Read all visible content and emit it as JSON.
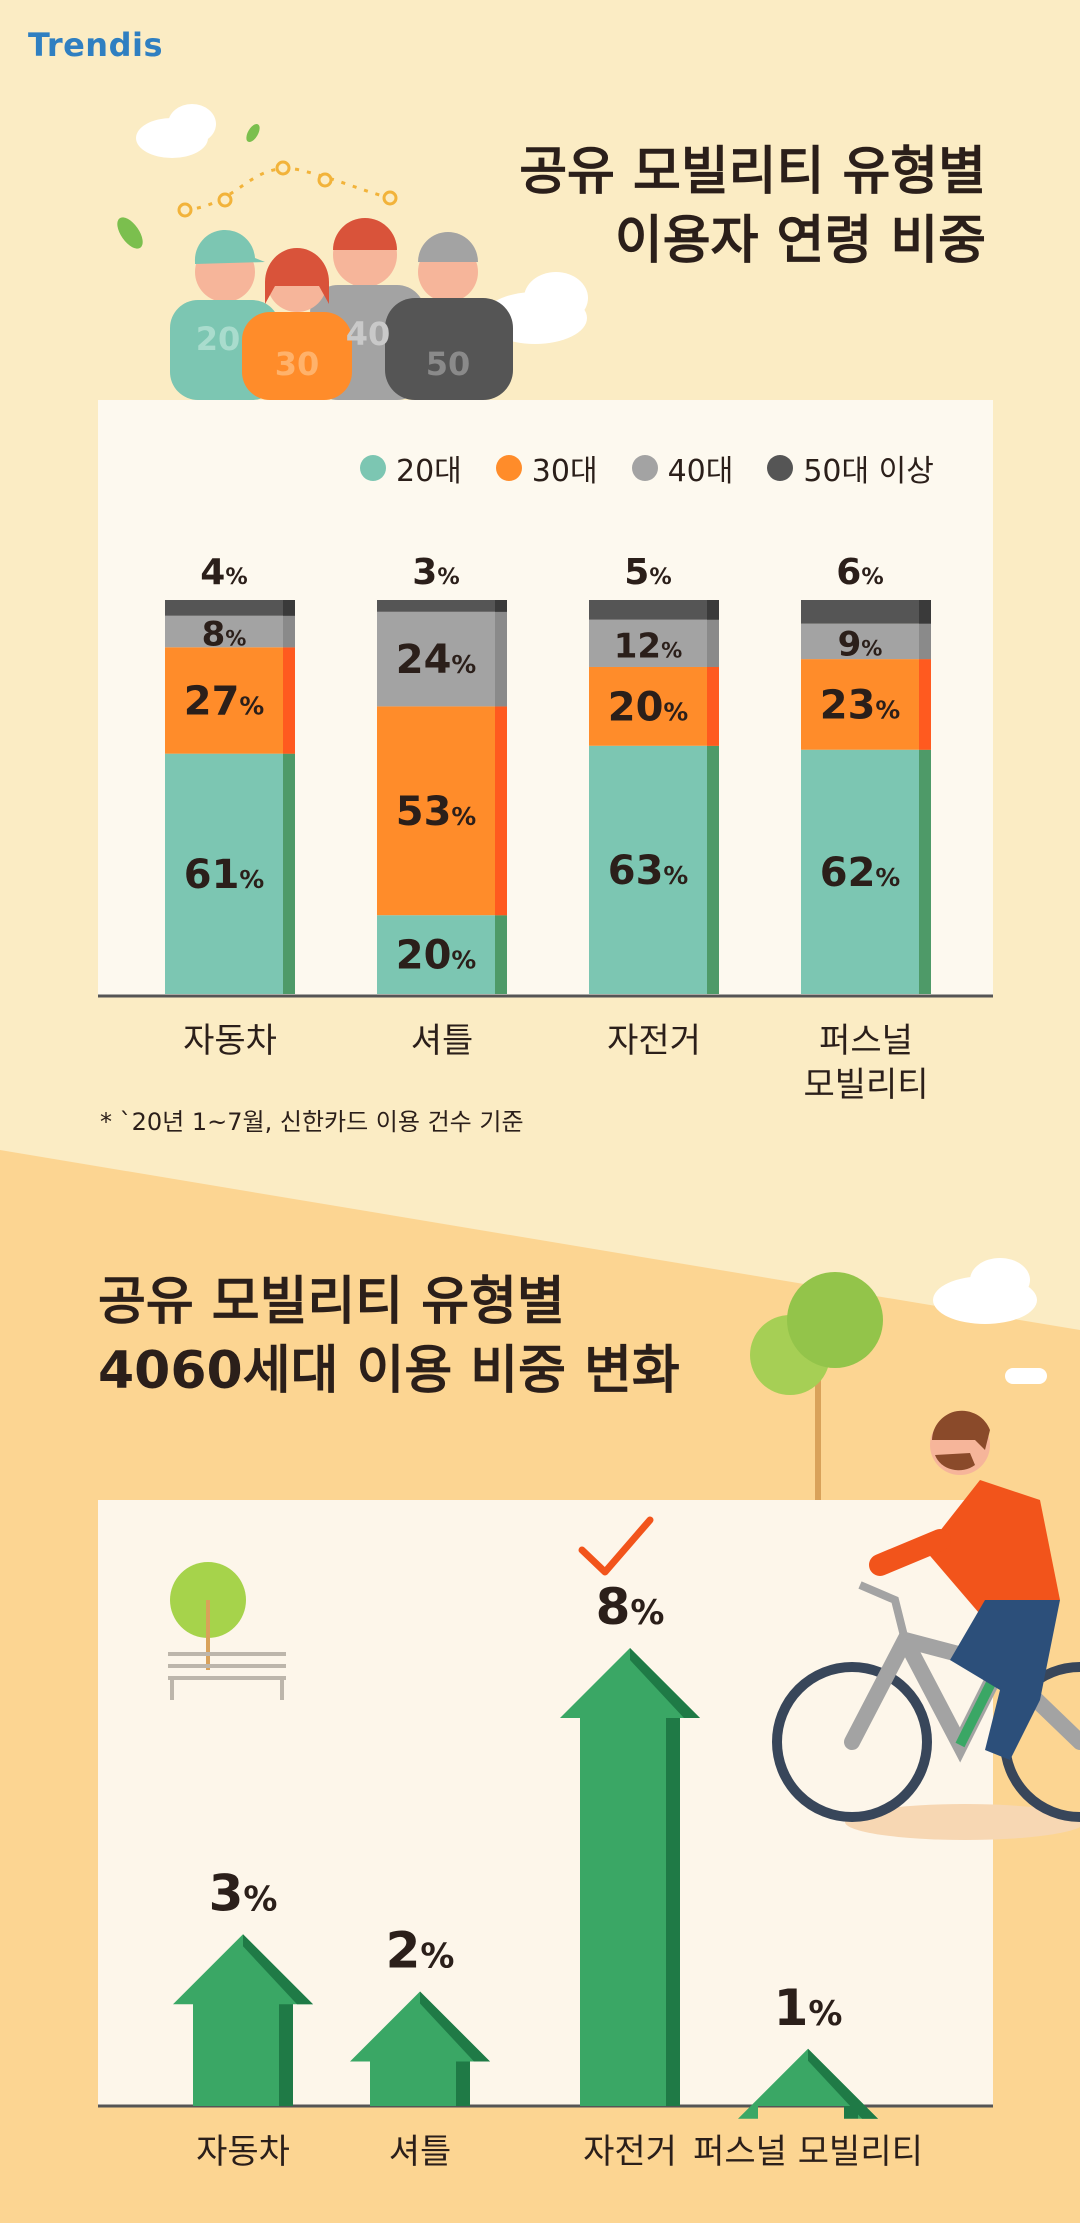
{
  "brand": {
    "logo_text": "Trendis"
  },
  "section1": {
    "title_line1": "공유 모빌리티 유형별",
    "title_line2": "이용자 연령 비중",
    "illustration_labels": [
      "20",
      "30",
      "40",
      "50"
    ],
    "note": "* `20년 1~7월, 신한카드 이용 건수 기준"
  },
  "section2": {
    "title_line1": "공유 모빌리티 유형별",
    "title_line2": "4060세대 이용 비중 변화"
  },
  "colors": {
    "age20": "#7cc6b2",
    "age30": "#ff8c2a",
    "age40": "#a3a3a3",
    "age50": "#555555",
    "arrow": "#3aa765",
    "background": "#fbecc4"
  },
  "chart_data": [
    {
      "type": "bar",
      "stacked": true,
      "categories": [
        "자동차",
        "셔틀",
        "자전거",
        "퍼스널 모빌리티"
      ],
      "category_lines": [
        [
          "자동차"
        ],
        [
          "셔틀"
        ],
        [
          "자전거"
        ],
        [
          "퍼스널",
          "모빌리티"
        ]
      ],
      "series": [
        {
          "name": "20대",
          "values": [
            61,
            20,
            63,
            62
          ]
        },
        {
          "name": "30대",
          "values": [
            27,
            53,
            20,
            23
          ]
        },
        {
          "name": "40대",
          "values": [
            8,
            24,
            12,
            9
          ]
        },
        {
          "name": "50대 이상",
          "values": [
            4,
            3,
            5,
            6
          ]
        }
      ],
      "unit": "%",
      "ylim": [
        0,
        100
      ],
      "legend": "top"
    },
    {
      "type": "bar",
      "style": "arrow",
      "categories": [
        "자동차",
        "셔틀",
        "자전거",
        "퍼스널 모빌리티"
      ],
      "values": [
        3,
        2,
        8,
        1
      ],
      "unit": "%",
      "highlight": "자전거"
    }
  ]
}
